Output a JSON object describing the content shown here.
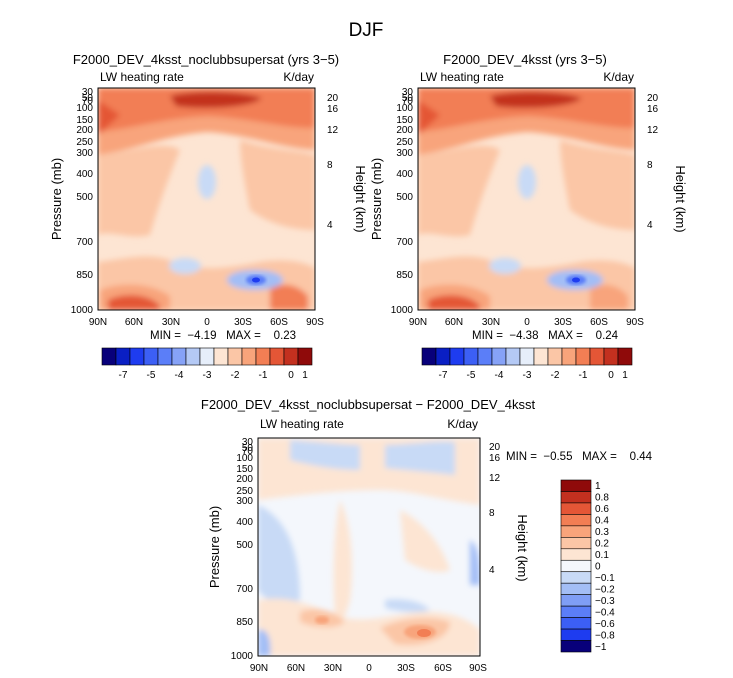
{
  "figure": {
    "title": "DJF"
  },
  "chart_data": [
    {
      "type": "heatmap",
      "title": "F2000_DEV_4ksst_noclubbsupersat (yrs 3−5)",
      "subtitle_left": "LW heating rate",
      "subtitle_right": "K/day",
      "ylabel": "Pressure (mb)",
      "ylabel_right": "Height (km)",
      "xlabel": "",
      "x_ticks": [
        "90N",
        "60N",
        "30N",
        "0",
        "30S",
        "60S",
        "90S"
      ],
      "y_ticks": [
        "30",
        "50",
        "70",
        "100",
        "150",
        "200",
        "250",
        "300",
        "400",
        "500",
        "700",
        "850",
        "1000"
      ],
      "y_ticks_right": [
        "20",
        "16",
        "12",
        "8",
        "4"
      ],
      "ylim": [
        1000,
        30
      ],
      "xlim": [
        90,
        -90
      ],
      "levels": [
        -7,
        -6,
        -5,
        -4.5,
        -4,
        -3.5,
        -3,
        -2.5,
        -2,
        -1.5,
        -1,
        -0.5,
        0,
        0.5,
        1
      ],
      "colorbar_labels": [
        "-7",
        "-5",
        "-4",
        "-3",
        "-2",
        "-1",
        "0",
        "1"
      ],
      "colors": [
        "#08007a",
        "#0a1fc4",
        "#1e3cf0",
        "#3c5ff5",
        "#5b7ef8",
        "#86a2f7",
        "#b4c9f5",
        "#e6eefa",
        "#fde5d3",
        "#fbc6a6",
        "#f8a47b",
        "#f27e54",
        "#e45636",
        "#c3301f",
        "#8f0a0a"
      ],
      "stats": "MIN =  −4.19   MAX =    0.23"
    },
    {
      "type": "heatmap",
      "title": "F2000_DEV_4ksst (yrs 3−5)",
      "subtitle_left": "LW heating rate",
      "subtitle_right": "K/day",
      "ylabel": "Pressure (mb)",
      "ylabel_right": "Height (km)",
      "xlabel": "",
      "x_ticks": [
        "90N",
        "60N",
        "30N",
        "0",
        "30S",
        "60S",
        "90S"
      ],
      "y_ticks": [
        "30",
        "50",
        "70",
        "100",
        "150",
        "200",
        "250",
        "300",
        "400",
        "500",
        "700",
        "850",
        "1000"
      ],
      "y_ticks_right": [
        "20",
        "16",
        "12",
        "8",
        "4"
      ],
      "ylim": [
        1000,
        30
      ],
      "xlim": [
        90,
        -90
      ],
      "levels": [
        -7,
        -6,
        -5,
        -4.5,
        -4,
        -3.5,
        -3,
        -2.5,
        -2,
        -1.5,
        -1,
        -0.5,
        0,
        0.5,
        1
      ],
      "colorbar_labels": [
        "-7",
        "-5",
        "-4",
        "-3",
        "-2",
        "-1",
        "0",
        "1"
      ],
      "colors": [
        "#08007a",
        "#0a1fc4",
        "#1e3cf0",
        "#3c5ff5",
        "#5b7ef8",
        "#86a2f7",
        "#b4c9f5",
        "#e6eefa",
        "#fde5d3",
        "#fbc6a6",
        "#f8a47b",
        "#f27e54",
        "#e45636",
        "#c3301f",
        "#8f0a0a"
      ],
      "stats": "MIN =  −4.38   MAX =    0.24"
    },
    {
      "type": "heatmap",
      "title": "F2000_DEV_4ksst_noclubbsupersat − F2000_DEV_4ksst",
      "subtitle_left": "LW heating rate",
      "subtitle_right": "K/day",
      "ylabel": "Pressure (mb)",
      "ylabel_right": "Height (km)",
      "xlabel": "",
      "x_ticks": [
        "90N",
        "60N",
        "30N",
        "0",
        "30S",
        "60S",
        "90S"
      ],
      "y_ticks": [
        "30",
        "50",
        "70",
        "100",
        "150",
        "200",
        "250",
        "300",
        "400",
        "500",
        "700",
        "850",
        "1000"
      ],
      "y_ticks_right": [
        "20",
        "16",
        "12",
        "8",
        "4"
      ],
      "ylim": [
        1000,
        30
      ],
      "xlim": [
        90,
        -90
      ],
      "levels": [
        1,
        0.8,
        0.6,
        0.4,
        0.3,
        0.2,
        0.1,
        0,
        -0.1,
        -0.2,
        -0.3,
        -0.4,
        -0.6,
        -0.8,
        -1
      ],
      "colorbar_labels": [
        "1",
        "0.8",
        "0.6",
        "0.4",
        "0.3",
        "0.2",
        "0.1",
        "0",
        "−0.1",
        "−0.2",
        "−0.3",
        "−0.4",
        "−0.6",
        "−0.8",
        "−1"
      ],
      "colors": [
        "#8f0a0a",
        "#c3301f",
        "#e45636",
        "#f27e54",
        "#f8a47b",
        "#fbc6a6",
        "#fde5d3",
        "#f4f7fc",
        "#c8daf6",
        "#a3bef6",
        "#7f9ef6",
        "#5b7ef8",
        "#3c5ff5",
        "#1e3cf0",
        "#08007a"
      ],
      "stats": "MIN =  −0.55   MAX =    0.44"
    }
  ]
}
